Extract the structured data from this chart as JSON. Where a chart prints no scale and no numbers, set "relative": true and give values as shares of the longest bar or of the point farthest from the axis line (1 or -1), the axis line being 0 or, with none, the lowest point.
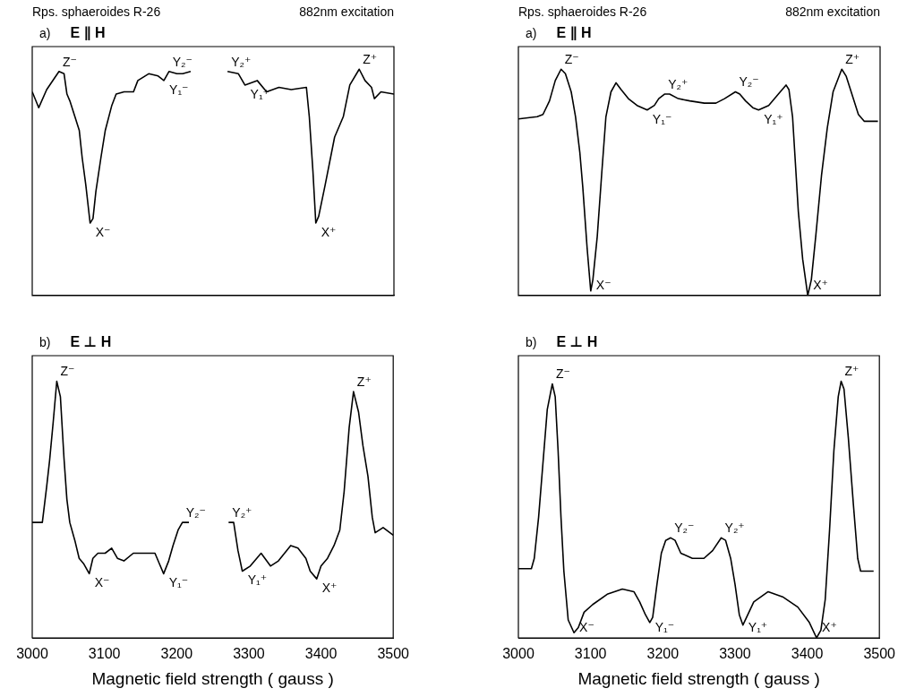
{
  "chart_data": [
    {
      "type": "line",
      "title": "Rps. sphaeroides R-26",
      "subtitle": "882nm excitation",
      "xlim": [
        3000,
        3500
      ],
      "xticks": [
        3000,
        3100,
        3200,
        3300,
        3400,
        3500
      ],
      "tick_labels": false,
      "relative": true,
      "x": [
        3000,
        3009,
        3020,
        3037,
        3044,
        3048,
        3052,
        3059,
        3065,
        3069,
        3074,
        3080,
        3084,
        3088,
        3095,
        3101,
        3110,
        3116,
        3127,
        3140,
        3146,
        3161,
        3174,
        3182,
        3189,
        3200,
        3208,
        3219,
        3245,
        3270,
        3285,
        3294,
        3311,
        3324,
        3341,
        3358,
        3379,
        3383,
        3388,
        3392,
        3396,
        3405,
        3418,
        3430,
        3439,
        3452,
        3460,
        3469,
        3473,
        3482,
        3500
      ],
      "series": [
        {
          "color": "#000000",
          "values": [
            0.9,
            0.83,
            0.91,
            0.99,
            0.98,
            0.89,
            0.86,
            0.79,
            0.73,
            0.61,
            0.49,
            0.32,
            0.34,
            0.46,
            0.61,
            0.73,
            0.84,
            0.89,
            0.9,
            0.9,
            0.95,
            0.98,
            0.97,
            0.95,
            0.99,
            0.98,
            0.98,
            0.99,
            null,
            0.99,
            0.98,
            0.93,
            0.95,
            0.9,
            0.92,
            0.91,
            0.92,
            0.79,
            0.55,
            0.32,
            0.35,
            0.49,
            0.7,
            0.79,
            0.93,
            1.0,
            0.95,
            0.92,
            0.87,
            0.9,
            0.89
          ]
        }
      ],
      "annotations": [
        "a)",
        "E ∥ H",
        {
          "text": "Z⁻",
          "x": 3037,
          "y": 0.99
        },
        {
          "text": "Y₂⁻",
          "x": 3189,
          "y": 0.99
        },
        {
          "text": "Y₁⁻",
          "x": 3182,
          "y": 0.95
        },
        {
          "text": "Y₂⁺",
          "x": 3270,
          "y": 0.99
        },
        {
          "text": "Y₁⁺",
          "x": 3294,
          "y": 0.93
        },
        {
          "text": "Z⁺",
          "x": 3452,
          "y": 1.0
        },
        {
          "text": "X⁻",
          "x": 3080,
          "y": 0.32
        },
        {
          "text": "X⁺",
          "x": 3392,
          "y": 0.32
        }
      ]
    },
    {
      "type": "line",
      "xlabel": "Magnetic field strength ( gauss )",
      "xlim": [
        3000,
        3500
      ],
      "xticks": [
        3000,
        3100,
        3200,
        3300,
        3400,
        3500
      ],
      "tick_labels": "x",
      "relative": true,
      "x": [
        3000,
        3014,
        3020,
        3024,
        3029,
        3034,
        3039,
        3044,
        3048,
        3052,
        3059,
        3065,
        3071,
        3079,
        3084,
        3091,
        3101,
        3110,
        3118,
        3127,
        3140,
        3157,
        3170,
        3176,
        3182,
        3189,
        3195,
        3202,
        3208,
        3217,
        3245,
        3272,
        3279,
        3285,
        3291,
        3302,
        3317,
        3330,
        3341,
        3358,
        3368,
        3379,
        3385,
        3394,
        3400,
        3409,
        3418,
        3426,
        3432,
        3439,
        3445,
        3452,
        3458,
        3465,
        3471,
        3475,
        3486,
        3500
      ],
      "series": [
        {
          "color": "#000000",
          "values": [
            0.45,
            0.45,
            0.59,
            0.69,
            0.84,
            1.0,
            0.94,
            0.7,
            0.54,
            0.45,
            0.38,
            0.31,
            0.29,
            0.25,
            0.31,
            0.33,
            0.33,
            0.35,
            0.31,
            0.3,
            0.33,
            0.33,
            0.33,
            0.29,
            0.25,
            0.3,
            0.36,
            0.42,
            0.45,
            0.45,
            null,
            0.45,
            0.45,
            0.34,
            0.26,
            0.28,
            0.33,
            0.28,
            0.3,
            0.36,
            0.35,
            0.31,
            0.26,
            0.23,
            0.28,
            0.31,
            0.36,
            0.42,
            0.57,
            0.82,
            0.96,
            0.88,
            0.75,
            0.63,
            0.47,
            0.41,
            0.43,
            0.4
          ]
        }
      ],
      "annotations": [
        "b)",
        "E ⊥ H",
        {
          "text": "Z⁻",
          "x": 3034,
          "y": 1.0
        },
        {
          "text": "Z⁺",
          "x": 3445,
          "y": 0.96
        },
        {
          "text": "Y₂⁻",
          "x": 3208,
          "y": 0.45
        },
        {
          "text": "Y₂⁺",
          "x": 3272,
          "y": 0.45
        },
        {
          "text": "X⁻",
          "x": 3079,
          "y": 0.25
        },
        {
          "text": "Y₁⁻",
          "x": 3182,
          "y": 0.25
        },
        {
          "text": "Y₁⁺",
          "x": 3291,
          "y": 0.26
        },
        {
          "text": "X⁺",
          "x": 3394,
          "y": 0.23
        }
      ]
    },
    {
      "type": "line",
      "title": "Rps. sphaeroides R-26",
      "subtitle": "882nm excitation",
      "xlim": [
        3000,
        3500
      ],
      "xticks": [
        3000,
        3100,
        3200,
        3300,
        3400,
        3500
      ],
      "tick_labels": false,
      "relative": true,
      "x": [
        3000,
        3026,
        3034,
        3043,
        3051,
        3059,
        3065,
        3073,
        3079,
        3085,
        3089,
        3095,
        3100,
        3103,
        3109,
        3115,
        3121,
        3128,
        3135,
        3142,
        3152,
        3164,
        3178,
        3188,
        3194,
        3202,
        3209,
        3221,
        3237,
        3257,
        3273,
        3285,
        3300,
        3306,
        3314,
        3324,
        3332,
        3346,
        3362,
        3370,
        3374,
        3379,
        3383,
        3387,
        3393,
        3400,
        3405,
        3411,
        3419,
        3427,
        3435,
        3447,
        3453,
        3462,
        3470,
        3478,
        3497
      ],
      "series": [
        {
          "color": "#000000",
          "values": [
            0.78,
            0.79,
            0.8,
            0.86,
            0.95,
            1.0,
            0.98,
            0.9,
            0.79,
            0.63,
            0.48,
            0.21,
            0.02,
            0.07,
            0.26,
            0.53,
            0.79,
            0.9,
            0.94,
            0.91,
            0.87,
            0.84,
            0.82,
            0.84,
            0.87,
            0.89,
            0.89,
            0.87,
            0.86,
            0.85,
            0.85,
            0.87,
            0.9,
            0.89,
            0.86,
            0.83,
            0.82,
            0.84,
            0.9,
            0.93,
            0.91,
            0.79,
            0.58,
            0.37,
            0.16,
            0.0,
            0.07,
            0.26,
            0.53,
            0.74,
            0.9,
            1.0,
            0.97,
            0.88,
            0.8,
            0.77,
            0.77
          ]
        }
      ],
      "annotations": [
        "a)",
        "E ∥ H",
        {
          "text": "Z⁻",
          "x": 3059,
          "y": 1.0
        },
        {
          "text": "Y₂⁺",
          "x": 3202,
          "y": 0.89
        },
        {
          "text": "Y₂⁻",
          "x": 3300,
          "y": 0.9
        },
        {
          "text": "Y₁⁻",
          "x": 3178,
          "y": 0.82
        },
        {
          "text": "Y₁⁺",
          "x": 3332,
          "y": 0.82
        },
        {
          "text": "Z⁺",
          "x": 3447,
          "y": 1.0
        },
        {
          "text": "X⁻",
          "x": 3100,
          "y": 0.02
        },
        {
          "text": "X⁺",
          "x": 3400,
          "y": 0.0
        }
      ]
    },
    {
      "type": "line",
      "xlabel": "Magnetic field strength ( gauss )",
      "xlim": [
        3000,
        3500
      ],
      "xticks": [
        3000,
        3100,
        3200,
        3300,
        3400,
        3500
      ],
      "tick_labels": "x",
      "relative": true,
      "x": [
        3000,
        3018,
        3022,
        3028,
        3034,
        3040,
        3047,
        3051,
        3055,
        3059,
        3063,
        3069,
        3077,
        3083,
        3091,
        3103,
        3123,
        3144,
        3160,
        3168,
        3176,
        3182,
        3186,
        3192,
        3198,
        3204,
        3211,
        3217,
        3225,
        3241,
        3257,
        3269,
        3281,
        3287,
        3294,
        3300,
        3306,
        3311,
        3316,
        3326,
        3346,
        3366,
        3387,
        3403,
        3413,
        3419,
        3425,
        3431,
        3437,
        3443,
        3447,
        3451,
        3457,
        3464,
        3470,
        3474,
        3492
      ],
      "series": [
        {
          "color": "#000000",
          "values": [
            0.27,
            0.27,
            0.31,
            0.47,
            0.68,
            0.89,
            0.99,
            0.94,
            0.73,
            0.47,
            0.26,
            0.07,
            0.02,
            0.04,
            0.1,
            0.13,
            0.17,
            0.19,
            0.18,
            0.14,
            0.09,
            0.06,
            0.08,
            0.21,
            0.33,
            0.38,
            0.39,
            0.38,
            0.33,
            0.31,
            0.31,
            0.34,
            0.39,
            0.38,
            0.31,
            0.21,
            0.09,
            0.05,
            0.08,
            0.14,
            0.18,
            0.16,
            0.12,
            0.06,
            0.0,
            0.03,
            0.15,
            0.42,
            0.73,
            0.94,
            1.0,
            0.97,
            0.78,
            0.52,
            0.31,
            0.26,
            0.26
          ]
        }
      ],
      "annotations": [
        "b)",
        "E ⊥ H",
        {
          "text": "Z⁻",
          "x": 3047,
          "y": 0.99
        },
        {
          "text": "Z⁺",
          "x": 3447,
          "y": 1.0
        },
        {
          "text": "Y₂⁻",
          "x": 3211,
          "y": 0.39
        },
        {
          "text": "Y₂⁺",
          "x": 3281,
          "y": 0.39
        },
        {
          "text": "Y₁⁻",
          "x": 3182,
          "y": 0.06
        },
        {
          "text": "Y₁⁺",
          "x": 3311,
          "y": 0.05
        },
        {
          "text": "X⁻",
          "x": 3077,
          "y": 0.02
        },
        {
          "text": "X⁺",
          "x": 3413,
          "y": 0.0
        }
      ]
    }
  ]
}
